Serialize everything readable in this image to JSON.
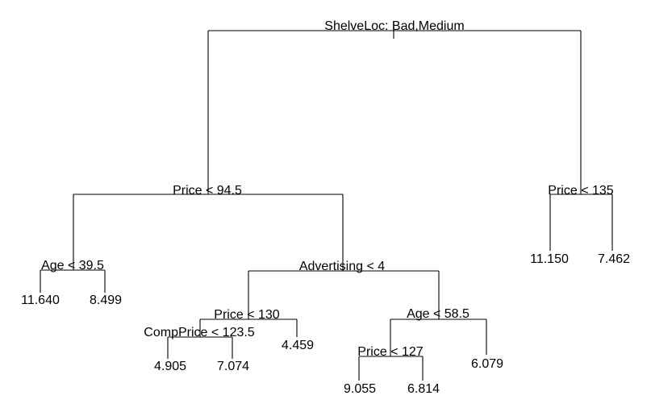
{
  "tree": {
    "root": "ShelveLoc: Bad,Medium",
    "left": {
      "split": "Price < 94.5",
      "age_split": "Age < 39.5",
      "age_leaves": [
        "11.640",
        "8.499"
      ],
      "advertising_split": "Advertising < 4",
      "price130_split": "Price < 130",
      "compprice_split": "CompPrice < 123.5",
      "compprice_leaves": [
        "4.905",
        "7.074"
      ],
      "price130_right_leaf": "4.459",
      "age58_split": "Age < 58.5",
      "price127_split": "Price < 127",
      "price127_leaves": [
        "9.055",
        "6.814"
      ],
      "age58_right_leaf": "6.079"
    },
    "right": {
      "split": "Price < 135",
      "leaves": [
        "11.150",
        "7.462"
      ]
    }
  },
  "colors": {
    "line": "#000000",
    "text": "#000000",
    "background": "#ffffff"
  }
}
